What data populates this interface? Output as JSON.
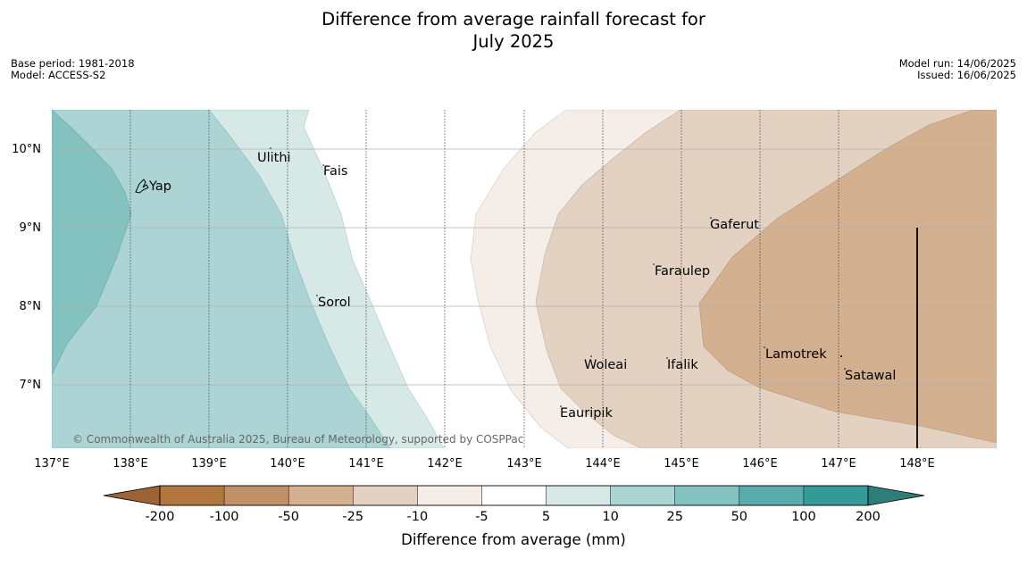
{
  "title": {
    "line1": "Difference from average rainfall forecast for",
    "line2": "July 2025"
  },
  "meta_left": {
    "base_period": "Base period: 1981-2018",
    "model": "Model: ACCESS-S2"
  },
  "meta_right": {
    "model_run": "Model run: 14/06/2025",
    "issued": "Issued: 16/06/2025"
  },
  "map": {
    "lon_range": [
      137.0,
      149.0
    ],
    "lat_range": [
      6.2,
      10.5
    ],
    "lon_ticks": [
      "137°E",
      "138°E",
      "139°E",
      "140°E",
      "141°E",
      "142°E",
      "143°E",
      "144°E",
      "145°E",
      "146°E",
      "147°E",
      "148°E"
    ],
    "lat_ticks": [
      "10°N",
      "9°N",
      "8°N",
      "7°N"
    ],
    "copyright": "© Commonwealth of Australia 2025, Bureau of Meteorology, supported by COSPPac",
    "places": [
      {
        "name": "Yap",
        "lon": 138.2,
        "lat": 9.55
      },
      {
        "name": "Ulithi",
        "lon": 139.65,
        "lat": 9.93
      },
      {
        "name": "Fais",
        "lon": 140.45,
        "lat": 9.73
      },
      {
        "name": "Sorol",
        "lon": 140.35,
        "lat": 8.08
      },
      {
        "name": "Gaferut",
        "lon": 145.35,
        "lat": 9.2
      },
      {
        "name": "Faraulep",
        "lon": 144.65,
        "lat": 8.5
      },
      {
        "name": "Woleai",
        "lon": 143.9,
        "lat": 7.35
      },
      {
        "name": "Ifalik",
        "lon": 144.85,
        "lat": 7.25
      },
      {
        "name": "Lamotrek",
        "lon": 146.05,
        "lat": 7.45
      },
      {
        "name": "Satawal",
        "lon": 147.05,
        "lat": 7.15
      },
      {
        "name": "Eauripik",
        "lon": 143.5,
        "lat": 6.7
      }
    ]
  },
  "colorbar": {
    "title": "Difference from average (mm)",
    "labels": [
      "-200",
      "-100",
      "-50",
      "-25",
      "-10",
      "-5",
      "5",
      "10",
      "25",
      "50",
      "100",
      "200"
    ],
    "colors": {
      "low_extend": "#9c6434",
      "bins": [
        "#b0763e",
        "#c09068",
        "#d3b090",
        "#e3d1c1",
        "#f4ede8",
        "#ffffff",
        "#d6e9e7",
        "#acd4d4",
        "#84c2c0",
        "#5aabab",
        "#339a98"
      ],
      "high_extend": "#2e7d78"
    }
  },
  "legend_colors": {
    "dry_100": "#c09068",
    "dry_50": "#d3b090",
    "dry_25": "#e3d1c1",
    "dry_10": "#f4ede8",
    "wet_10": "#d6e9e7",
    "wet_25": "#acd4d4",
    "wet_50": "#84c2c0"
  }
}
